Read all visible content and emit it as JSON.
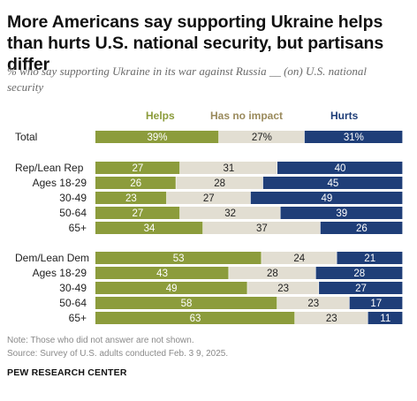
{
  "title": "More Americans say supporting Ukraine helps than hurts U.S. national security, but partisans differ",
  "subtitle": "% who say supporting Ukraine in its war against Russia __ (on) U.S. national security",
  "colors": {
    "helps": "#8c9c3c",
    "no_impact": "#e2ded2",
    "hurts": "#1f3e78",
    "legend_helps": "#8c9c3c",
    "legend_no_impact": "#9a8a5c",
    "legend_hurts": "#1f3e78"
  },
  "chart_data": {
    "type": "bar",
    "orientation": "horizontal",
    "stacked": true,
    "legend_position": "top",
    "series": [
      {
        "name": "Helps",
        "values": [
          39,
          27,
          26,
          23,
          27,
          34,
          53,
          43,
          49,
          58,
          63
        ]
      },
      {
        "name": "Has no impact",
        "values": [
          27,
          31,
          28,
          27,
          32,
          37,
          24,
          28,
          23,
          23,
          23
        ]
      },
      {
        "name": "Hurts",
        "values": [
          31,
          40,
          45,
          49,
          39,
          26,
          21,
          28,
          27,
          17,
          11
        ]
      }
    ],
    "categories": [
      "Total",
      "Rep/Lean Rep",
      "Ages 18-29",
      "30-49",
      "50-64",
      "65+",
      "Dem/Lean Dem",
      "Ages 18-29",
      "30-49",
      "50-64",
      "65+"
    ],
    "value_labels": [
      [
        "39%",
        "27%",
        "31%"
      ],
      [
        "27",
        "31",
        "40"
      ],
      [
        "26",
        "28",
        "45"
      ],
      [
        "23",
        "27",
        "49"
      ],
      [
        "27",
        "32",
        "39"
      ],
      [
        "34",
        "37",
        "26"
      ],
      [
        "53",
        "24",
        "21"
      ],
      [
        "43",
        "28",
        "28"
      ],
      [
        "49",
        "23",
        "27"
      ],
      [
        "58",
        "23",
        "17"
      ],
      [
        "63",
        "23",
        "11"
      ]
    ],
    "row_group": [
      "total",
      "partisan",
      "age",
      "age",
      "age",
      "age",
      "partisan",
      "age",
      "age",
      "age",
      "age"
    ]
  },
  "footer": {
    "note": "Note: Those who did not answer are not shown.",
    "source": "Source: Survey of U.S. adults conducted Feb. 3 9, 2025.",
    "brand": "PEW RESEARCH CENTER"
  }
}
